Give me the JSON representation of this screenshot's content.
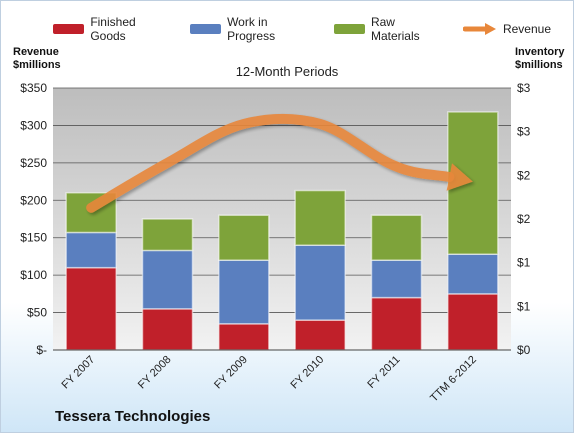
{
  "chart_data": {
    "type": "bar",
    "stacked": true,
    "title": "12-Month Periods",
    "company": "Tessera Technologies",
    "y_left_label": [
      "Revenue",
      "$millions"
    ],
    "y_right_label": [
      "Inventory",
      "$millions"
    ],
    "categories": [
      "FY 2007",
      "FY 2008",
      "FY 2009",
      "FY 2010",
      "FY 2011",
      "TTM 6-2012"
    ],
    "ylim_left": [
      0,
      350
    ],
    "y_left_ticks": [
      "$-",
      "$50",
      "$100",
      "$150",
      "$200",
      "$250",
      "$300",
      "$350"
    ],
    "ylim_right": [
      0,
      3
    ],
    "y_right_ticks": [
      "$0",
      "$1",
      "$1",
      "$2",
      "$2",
      "$3",
      "$3"
    ],
    "series": [
      {
        "name": "Finished Goods",
        "axis": "left",
        "color": "#c0202a",
        "values": [
          110,
          55,
          35,
          40,
          70,
          75
        ]
      },
      {
        "name": "Work in Progress",
        "axis": "left",
        "color": "#5a7fbf",
        "values": [
          47,
          78,
          85,
          100,
          50,
          53
        ]
      },
      {
        "name": "Raw Materials",
        "axis": "left",
        "color": "#7ea33a",
        "values": [
          53,
          42,
          60,
          73,
          60,
          190
        ]
      }
    ],
    "line_series": {
      "name": "Revenue",
      "axis": "left",
      "color": "#e8873a",
      "values": [
        190,
        250,
        302,
        302,
        245,
        225
      ]
    },
    "grid": true,
    "legend_position": "top"
  }
}
